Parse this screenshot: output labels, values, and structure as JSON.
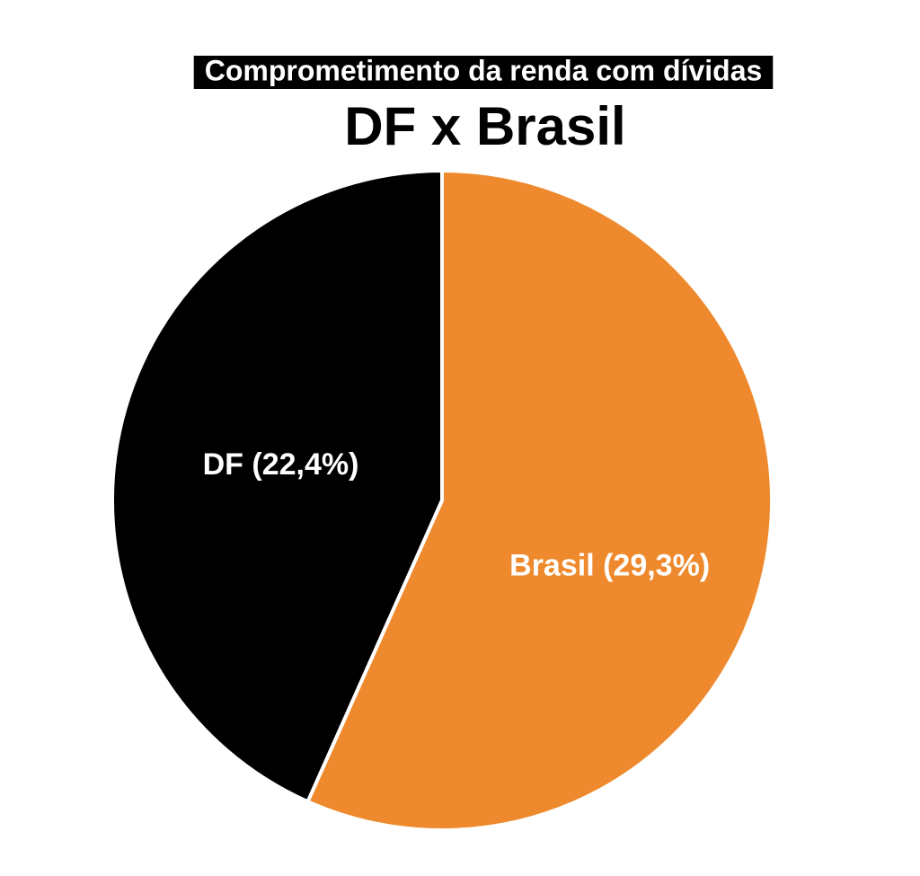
{
  "chart_data": {
    "type": "pie",
    "title": "Comprometimento da renda com dívidas",
    "subtitle": "DF x Brasil",
    "categories": [
      "DF",
      "Brasil"
    ],
    "values": [
      22.4,
      29.3
    ],
    "value_labels": [
      "(22,4%)",
      "(29,3%)"
    ],
    "colors": [
      "#000000",
      "#ee8a2d"
    ]
  }
}
